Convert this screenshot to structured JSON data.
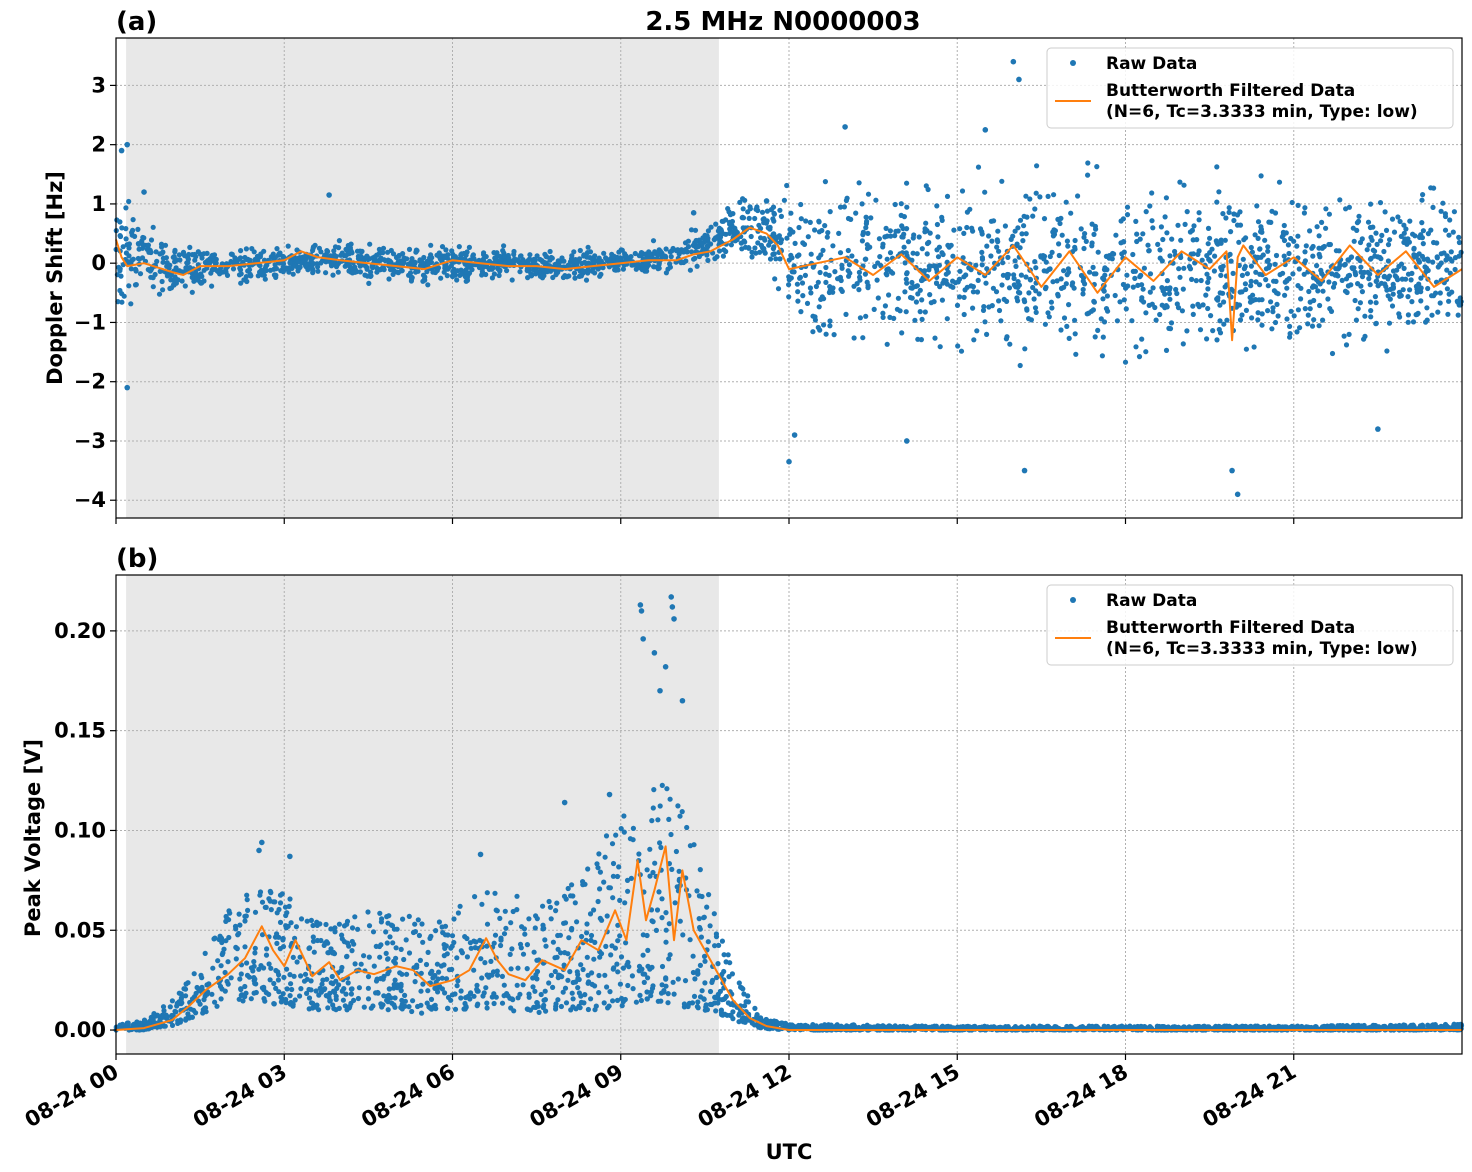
{
  "title": "2.5 MHz N0000003",
  "colors": {
    "raw": "#1f77b4",
    "filtered": "#ff7f0e",
    "shade": "#e8e8e8",
    "grid": "#b0b0b0"
  },
  "chart_data": [
    {
      "panel_label": "(a)",
      "type": "scatter",
      "ylabel": "Doppler Shift [Hz]",
      "xlabel": "",
      "xlim_hours": [
        0,
        24
      ],
      "ylim": [
        -4.3,
        3.8
      ],
      "yticks": [
        3,
        2,
        1,
        0,
        -1,
        -2,
        -3,
        -4
      ],
      "ytick_labels": [
        "3",
        "2",
        "1",
        "0",
        "−1",
        "−2",
        "−3",
        "−4"
      ],
      "xticks_hours": [
        0,
        3,
        6,
        9,
        12,
        15,
        18,
        21
      ],
      "grid": true,
      "legend": {
        "placement": "top-right",
        "entries": [
          "Raw Data",
          "Butterworth Filtered Data",
          "(N=6, Tc=3.3333 min, Type: low)"
        ]
      },
      "shaded_span_hours": [
        0.18,
        10.75
      ],
      "series": [
        {
          "name": "Raw Data",
          "kind": "points",
          "envelope_hours": [
            0,
            0.5,
            1,
            2,
            3,
            4,
            5,
            6,
            7,
            8,
            9,
            10,
            10.5,
            11,
            11.7,
            12,
            12.5,
            13,
            14,
            15,
            16,
            17,
            18,
            19,
            20,
            21,
            22,
            23,
            24
          ],
          "center": [
            0.3,
            0.05,
            -0.1,
            -0.05,
            0.0,
            0.05,
            -0.05,
            0.0,
            -0.02,
            -0.05,
            0.05,
            0.1,
            0.3,
            0.55,
            0.5,
            0.0,
            -0.1,
            0.0,
            0.05,
            -0.05,
            -0.15,
            -0.1,
            -0.1,
            -0.1,
            -0.05,
            -0.1,
            -0.05,
            0.0,
            -0.1
          ],
          "spread": [
            0.9,
            0.5,
            0.4,
            0.25,
            0.25,
            0.25,
            0.25,
            0.25,
            0.2,
            0.2,
            0.2,
            0.25,
            0.3,
            0.4,
            0.5,
            0.9,
            1.1,
            1.2,
            1.2,
            1.2,
            1.2,
            1.2,
            1.2,
            1.2,
            1.2,
            1.2,
            1.1,
            1.1,
            1.1
          ],
          "outliers": [
            [
              0.1,
              1.9
            ],
            [
              0.2,
              2.0
            ],
            [
              0.2,
              -2.1
            ],
            [
              0.5,
              1.2
            ],
            [
              3.8,
              1.15
            ],
            [
              13.0,
              2.3
            ],
            [
              15.5,
              2.25
            ],
            [
              16.0,
              3.4
            ],
            [
              16.1,
              3.1
            ],
            [
              16.2,
              -3.5
            ],
            [
              12.0,
              -3.35
            ],
            [
              12.1,
              -2.9
            ],
            [
              14.1,
              -3.0
            ],
            [
              20.0,
              -3.9
            ],
            [
              19.9,
              -3.5
            ],
            [
              22.5,
              -2.8
            ],
            [
              10.3,
              0.85
            ],
            [
              11.6,
              1.05
            ]
          ]
        },
        {
          "name": "Butterworth Filtered Data",
          "kind": "line",
          "x_hours": [
            0.0,
            0.1,
            0.2,
            0.5,
            1.0,
            1.2,
            1.5,
            2.0,
            2.5,
            3.0,
            3.3,
            3.6,
            4.0,
            4.5,
            5.0,
            5.5,
            6.0,
            6.5,
            7.0,
            7.5,
            8.0,
            8.5,
            9.0,
            9.5,
            10.0,
            10.3,
            10.6,
            11.0,
            11.3,
            11.6,
            11.8,
            12.0,
            12.5,
            13.0,
            13.5,
            14.0,
            14.5,
            15.0,
            15.5,
            16.0,
            16.5,
            17.0,
            17.5,
            18.0,
            18.5,
            19.0,
            19.5,
            19.8,
            19.9,
            20.0,
            20.1,
            20.5,
            21.0,
            21.5,
            22.0,
            22.5,
            23.0,
            23.5,
            24.0
          ],
          "y": [
            0.4,
            0.1,
            -0.05,
            0.0,
            -0.15,
            -0.2,
            -0.05,
            -0.05,
            0.0,
            0.05,
            0.2,
            0.1,
            0.05,
            0.0,
            -0.05,
            -0.1,
            0.05,
            0.0,
            -0.05,
            -0.05,
            -0.1,
            -0.05,
            0.0,
            0.05,
            0.05,
            0.15,
            0.2,
            0.4,
            0.6,
            0.5,
            0.3,
            -0.1,
            0.0,
            0.1,
            -0.2,
            0.15,
            -0.3,
            0.1,
            -0.2,
            0.3,
            -0.4,
            0.2,
            -0.5,
            0.1,
            -0.3,
            0.2,
            -0.1,
            0.2,
            -1.3,
            0.1,
            0.3,
            -0.2,
            0.1,
            -0.3,
            0.3,
            -0.2,
            0.2,
            -0.4,
            -0.1
          ]
        }
      ]
    },
    {
      "panel_label": "(b)",
      "type": "scatter",
      "ylabel": "Peak Voltage [V]",
      "xlabel": "UTC",
      "xlim_hours": [
        0,
        24
      ],
      "ylim": [
        -0.012,
        0.228
      ],
      "yticks": [
        0.0,
        0.05,
        0.1,
        0.15,
        0.2
      ],
      "ytick_labels": [
        "0.00",
        "0.05",
        "0.10",
        "0.15",
        "0.20"
      ],
      "xticks_hours": [
        0,
        3,
        6,
        9,
        12,
        15,
        18,
        21
      ],
      "xtick_labels": [
        "08-24 00",
        "08-24 03",
        "08-24 06",
        "08-24 09",
        "08-24 12",
        "08-24 15",
        "08-24 18",
        "08-24 21"
      ],
      "grid": true,
      "legend": {
        "placement": "top-right",
        "entries": [
          "Raw Data",
          "Butterworth Filtered Data",
          "(N=6, Tc=3.3333 min, Type: low)"
        ]
      },
      "shaded_span_hours": [
        0.18,
        10.75
      ],
      "series": [
        {
          "name": "Raw Data",
          "kind": "points",
          "envelope_hours": [
            0,
            0.5,
            1.0,
            1.5,
            2.0,
            2.5,
            3.0,
            3.5,
            4.0,
            4.5,
            5.0,
            5.5,
            6.0,
            6.5,
            7.0,
            7.5,
            8.0,
            8.5,
            9.0,
            9.5,
            10.0,
            10.5,
            11.0,
            11.5,
            12.0,
            15.0,
            18.0,
            21.0,
            24.0
          ],
          "lower": [
            0.0,
            0.0,
            0.002,
            0.008,
            0.012,
            0.015,
            0.012,
            0.01,
            0.01,
            0.01,
            0.01,
            0.008,
            0.01,
            0.01,
            0.01,
            0.008,
            0.01,
            0.01,
            0.012,
            0.015,
            0.012,
            0.01,
            0.005,
            0.001,
            0.0,
            0.0,
            0.0,
            0.0,
            0.0
          ],
          "upper": [
            0.003,
            0.005,
            0.015,
            0.035,
            0.06,
            0.075,
            0.07,
            0.055,
            0.055,
            0.06,
            0.06,
            0.055,
            0.06,
            0.07,
            0.07,
            0.06,
            0.07,
            0.085,
            0.11,
            0.13,
            0.12,
            0.08,
            0.03,
            0.006,
            0.003,
            0.002,
            0.002,
            0.002,
            0.003
          ],
          "outliers": [
            [
              2.6,
              0.094
            ],
            [
              2.55,
              0.09
            ],
            [
              3.1,
              0.087
            ],
            [
              6.5,
              0.088
            ],
            [
              8.0,
              0.114
            ],
            [
              8.8,
              0.118
            ],
            [
              9.35,
              0.213
            ],
            [
              9.37,
              0.21
            ],
            [
              9.9,
              0.217
            ],
            [
              9.92,
              0.212
            ],
            [
              9.95,
              0.206
            ],
            [
              9.4,
              0.196
            ],
            [
              9.6,
              0.189
            ],
            [
              9.8,
              0.182
            ],
            [
              9.7,
              0.17
            ],
            [
              10.1,
              0.165
            ]
          ]
        },
        {
          "name": "Butterworth Filtered Data",
          "kind": "line",
          "x_hours": [
            0.0,
            0.5,
            1.0,
            1.3,
            1.6,
            2.0,
            2.3,
            2.6,
            2.8,
            3.0,
            3.2,
            3.5,
            3.8,
            4.0,
            4.3,
            4.6,
            5.0,
            5.3,
            5.6,
            6.0,
            6.3,
            6.6,
            6.8,
            7.0,
            7.3,
            7.6,
            8.0,
            8.3,
            8.6,
            8.9,
            9.1,
            9.3,
            9.45,
            9.6,
            9.8,
            9.95,
            10.1,
            10.3,
            10.5,
            10.7,
            11.0,
            11.3,
            11.6,
            12.0,
            15.0,
            18.0,
            21.0,
            24.0
          ],
          "y": [
            0.0,
            0.001,
            0.005,
            0.012,
            0.02,
            0.028,
            0.036,
            0.052,
            0.04,
            0.032,
            0.045,
            0.027,
            0.034,
            0.025,
            0.03,
            0.028,
            0.032,
            0.03,
            0.022,
            0.025,
            0.03,
            0.046,
            0.035,
            0.028,
            0.025,
            0.035,
            0.03,
            0.045,
            0.04,
            0.06,
            0.045,
            0.085,
            0.055,
            0.07,
            0.092,
            0.045,
            0.08,
            0.05,
            0.04,
            0.03,
            0.015,
            0.006,
            0.002,
            0.0,
            0.0,
            0.0,
            0.0,
            0.0
          ]
        }
      ]
    }
  ]
}
